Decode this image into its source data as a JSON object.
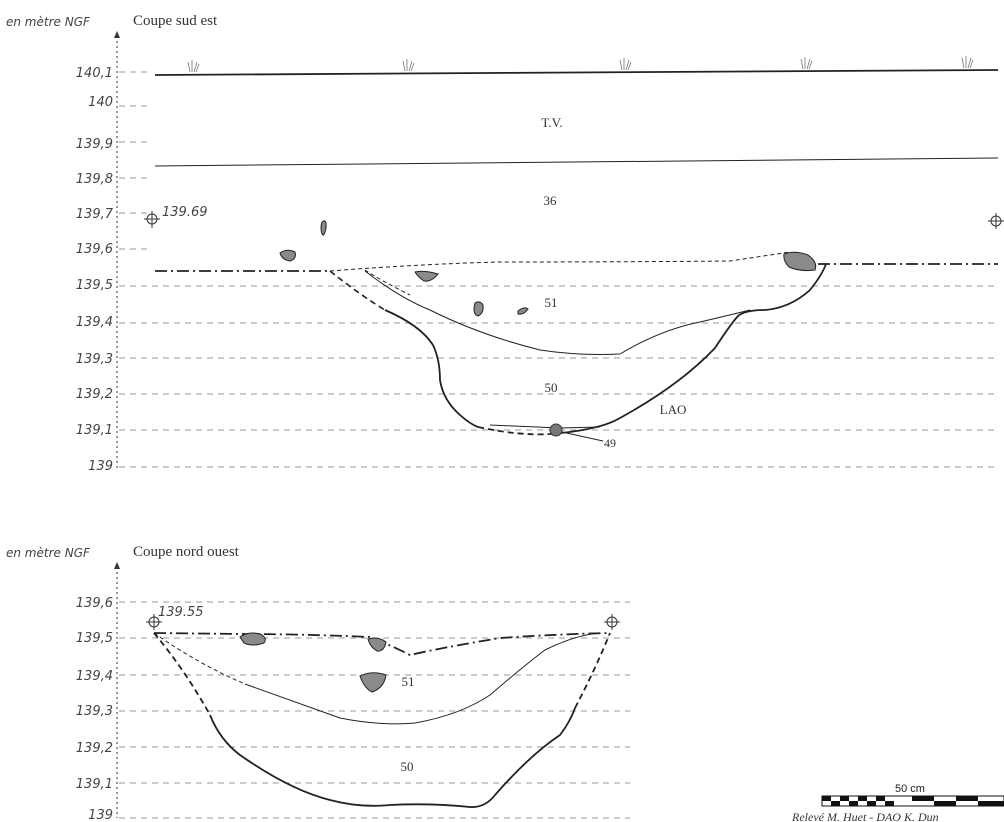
{
  "unit_label": "en mètre NGF",
  "credit": "Relevé M. Huet - DAO K. Dun",
  "scale_bar": {
    "label": "50 cm"
  },
  "section_se": {
    "title": "Coupe sud est",
    "ticks": [
      "140,1",
      "140",
      "139,9",
      "139,8",
      "139,7",
      "139,6",
      "139,5",
      "139,4",
      "139,3",
      "139,2",
      "139,1",
      "139"
    ],
    "datum": "139.69",
    "labels": {
      "tv": "T.V.",
      "l36": "36",
      "l51": "51",
      "l50": "50",
      "lao": "LAO",
      "l49": "49"
    }
  },
  "section_no": {
    "title": "Coupe nord ouest",
    "ticks": [
      "139,6",
      "139,5",
      "139,4",
      "139,3",
      "139,2",
      "139,1",
      "139"
    ],
    "datum": "139.55",
    "labels": {
      "l51": "51",
      "l50": "50"
    }
  }
}
